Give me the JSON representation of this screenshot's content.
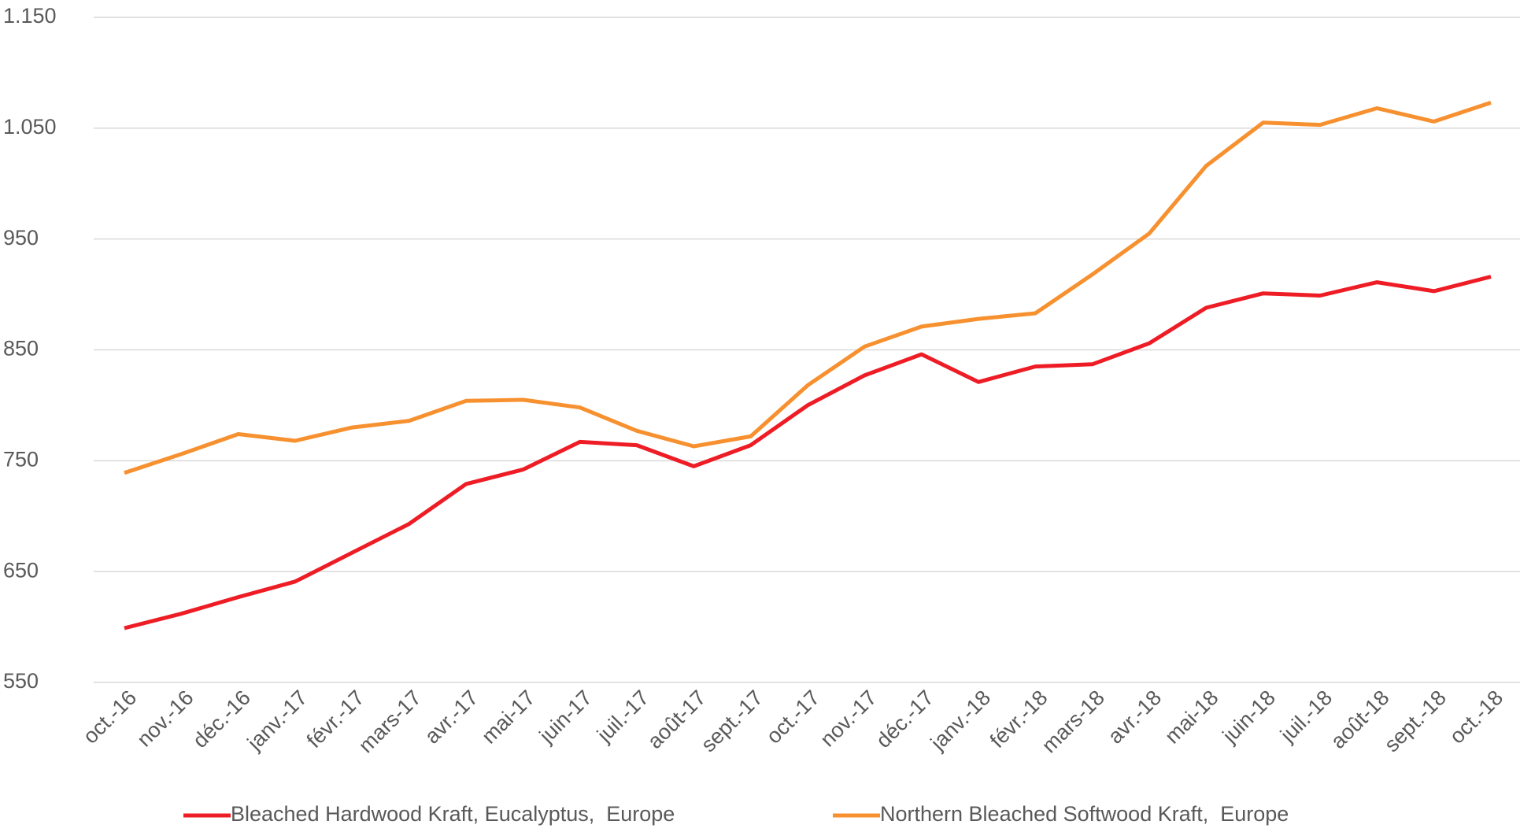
{
  "chart_data": {
    "type": "line",
    "categories": [
      "oct.-16",
      "nov.-16",
      "déc.-16",
      "janv.-17",
      "févr.-17",
      "mars-17",
      "avr.-17",
      "mai-17",
      "juin-17",
      "juil.-17",
      "août-17",
      "sept.-17",
      "oct.-17",
      "nov.-17",
      "déc.-17",
      "janv.-18",
      "févr.-18",
      "mars-18",
      "avr.-18",
      "mai-18",
      "juin-18",
      "juil.-18",
      "août-18",
      "sept.-18",
      "oct.-18"
    ],
    "series": [
      {
        "name": "Bleached Hardwood Kraft, Eucalyptus,  Europe",
        "color": "#ee1c25",
        "values": [
          599,
          612,
          627,
          641,
          667,
          693,
          729,
          742,
          767,
          764,
          745,
          764,
          800,
          827,
          846,
          821,
          835,
          837,
          856,
          888,
          901,
          899,
          911,
          903,
          916
        ]
      },
      {
        "name": "Northern Bleached Softwood Kraft,  Europe",
        "color": "#f7902f",
        "values": [
          739,
          756,
          774,
          768,
          780,
          786,
          804,
          805,
          798,
          777,
          763,
          772,
          818,
          853,
          871,
          878,
          883,
          918,
          955,
          1016,
          1055,
          1053,
          1068,
          1056,
          1073
        ]
      }
    ],
    "ylim": [
      550,
      1150
    ],
    "yticks": [
      550,
      650,
      750,
      850,
      950,
      {
        "value": 1050,
        "label": "1.050"
      },
      {
        "value": 1150,
        "label": "1.150"
      }
    ],
    "grid": true,
    "legend": "bottom"
  }
}
